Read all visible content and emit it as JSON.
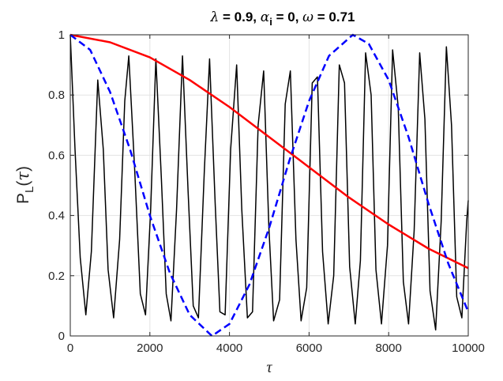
{
  "chart_data": {
    "type": "line",
    "title": {
      "lambda_sym": "λ",
      "lambda_val": " = 0.9, ",
      "alpha_sym": "α",
      "alpha_sub": "i",
      "alpha_val": " = 0, ",
      "omega_sym": "ω",
      "omega_val": " = 0.71"
    },
    "xlabel": "τ",
    "ylabel": {
      "main": "P",
      "sub": "L",
      "arg_open": "(",
      "arg_sym": "τ",
      "arg_close": ")"
    },
    "xlim": [
      0,
      10000
    ],
    "ylim": [
      0,
      1
    ],
    "xticks": [
      "0",
      "2000",
      "4000",
      "6000",
      "8000",
      "10000"
    ],
    "yticks": [
      "0",
      "0.2",
      "0.4",
      "0.6",
      "0.8",
      "1"
    ],
    "grid": true,
    "series": [
      {
        "style": "solid",
        "color": "#000000",
        "points": [
          [
            0,
            1.0
          ],
          [
            120,
            0.62
          ],
          [
            250,
            0.26
          ],
          [
            390,
            0.07
          ],
          [
            530,
            0.28
          ],
          [
            690,
            0.85
          ],
          [
            830,
            0.62
          ],
          [
            950,
            0.22
          ],
          [
            1090,
            0.06
          ],
          [
            1240,
            0.32
          ],
          [
            1370,
            0.78
          ],
          [
            1470,
            0.93
          ],
          [
            1620,
            0.55
          ],
          [
            1760,
            0.14
          ],
          [
            1890,
            0.07
          ],
          [
            2020,
            0.42
          ],
          [
            2150,
            0.92
          ],
          [
            2290,
            0.52
          ],
          [
            2410,
            0.14
          ],
          [
            2530,
            0.05
          ],
          [
            2670,
            0.42
          ],
          [
            2820,
            0.93
          ],
          [
            2960,
            0.48
          ],
          [
            3090,
            0.1
          ],
          [
            3220,
            0.06
          ],
          [
            3370,
            0.55
          ],
          [
            3500,
            0.92
          ],
          [
            3640,
            0.44
          ],
          [
            3760,
            0.08
          ],
          [
            3890,
            0.07
          ],
          [
            4030,
            0.62
          ],
          [
            4180,
            0.9
          ],
          [
            4310,
            0.42
          ],
          [
            4450,
            0.06
          ],
          [
            4580,
            0.08
          ],
          [
            4720,
            0.7
          ],
          [
            4860,
            0.88
          ],
          [
            4990,
            0.36
          ],
          [
            5110,
            0.05
          ],
          [
            5260,
            0.12
          ],
          [
            5400,
            0.77
          ],
          [
            5530,
            0.88
          ],
          [
            5670,
            0.32
          ],
          [
            5800,
            0.05
          ],
          [
            5940,
            0.16
          ],
          [
            6080,
            0.84
          ],
          [
            6210,
            0.86
          ],
          [
            6340,
            0.28
          ],
          [
            6480,
            0.04
          ],
          [
            6620,
            0.2
          ],
          [
            6760,
            0.9
          ],
          [
            6890,
            0.84
          ],
          [
            7020,
            0.23
          ],
          [
            7160,
            0.04
          ],
          [
            7290,
            0.25
          ],
          [
            7420,
            0.94
          ],
          [
            7560,
            0.8
          ],
          [
            7680,
            0.22
          ],
          [
            7820,
            0.04
          ],
          [
            7970,
            0.3
          ],
          [
            8100,
            0.95
          ],
          [
            8240,
            0.76
          ],
          [
            8370,
            0.18
          ],
          [
            8500,
            0.04
          ],
          [
            8640,
            0.35
          ],
          [
            8780,
            0.94
          ],
          [
            8910,
            0.72
          ],
          [
            9040,
            0.15
          ],
          [
            9180,
            0.02
          ],
          [
            9320,
            0.38
          ],
          [
            9450,
            0.96
          ],
          [
            9580,
            0.7
          ],
          [
            9710,
            0.13
          ],
          [
            9840,
            0.06
          ],
          [
            9960,
            0.38
          ],
          [
            10000,
            0.45
          ]
        ]
      },
      {
        "style": "solid",
        "color": "#ff0000",
        "points": [
          [
            0,
            1.0
          ],
          [
            1000,
            0.975
          ],
          [
            2000,
            0.925
          ],
          [
            3000,
            0.85
          ],
          [
            4000,
            0.76
          ],
          [
            5000,
            0.66
          ],
          [
            6000,
            0.56
          ],
          [
            7000,
            0.46
          ],
          [
            8000,
            0.37
          ],
          [
            9000,
            0.29
          ],
          [
            10000,
            0.225
          ]
        ]
      },
      {
        "style": "dashed",
        "color": "#0000ff",
        "points": [
          [
            0,
            1.0
          ],
          [
            500,
            0.95
          ],
          [
            1000,
            0.81
          ],
          [
            1500,
            0.62
          ],
          [
            2000,
            0.4
          ],
          [
            2500,
            0.21
          ],
          [
            3000,
            0.07
          ],
          [
            3560,
            0.0
          ],
          [
            4000,
            0.04
          ],
          [
            4500,
            0.17
          ],
          [
            5000,
            0.36
          ],
          [
            5500,
            0.58
          ],
          [
            6000,
            0.78
          ],
          [
            6500,
            0.93
          ],
          [
            7100,
            1.0
          ],
          [
            7500,
            0.97
          ],
          [
            8000,
            0.85
          ],
          [
            8500,
            0.66
          ],
          [
            9000,
            0.44
          ],
          [
            9500,
            0.24
          ],
          [
            10000,
            0.08
          ]
        ]
      }
    ]
  }
}
